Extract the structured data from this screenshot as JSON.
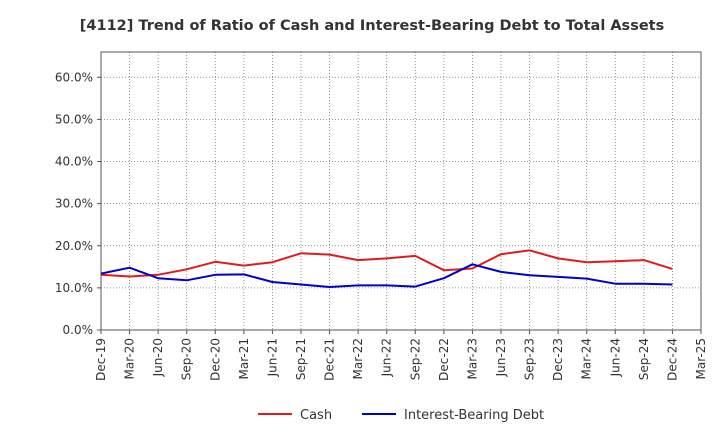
{
  "chart_data": {
    "type": "line",
    "title": "[4112]  Trend of Ratio of Cash and Interest-Bearing Debt to Total Assets",
    "xlabel": "",
    "ylabel": "",
    "ylim": [
      0,
      66
    ],
    "yticks": [
      0,
      10,
      20,
      30,
      40,
      50,
      60
    ],
    "ytick_labels": [
      "0.0%",
      "10.0%",
      "20.0%",
      "30.0%",
      "40.0%",
      "50.0%",
      "60.0%"
    ],
    "xtick_labels": [
      "Dec-19",
      "Mar-20",
      "Jun-20",
      "Sep-20",
      "Dec-20",
      "Mar-21",
      "Jun-21",
      "Sep-21",
      "Dec-21",
      "Mar-22",
      "Jun-22",
      "Sep-22",
      "Dec-22",
      "Mar-23",
      "Jun-23",
      "Sep-23",
      "Dec-23",
      "Mar-24",
      "Jun-24",
      "Sep-24",
      "Dec-24",
      "Mar-25"
    ],
    "grid": true,
    "legend_position": "bottom",
    "series": [
      {
        "name": "Cash",
        "color": "#e31a1c",
        "values": [
          13.1,
          12.7,
          13.1,
          14.4,
          16.2,
          15.3,
          16.1,
          18.2,
          17.9,
          16.6,
          17.0,
          17.6,
          14.2,
          14.6,
          18.0,
          18.9,
          17.0,
          16.1,
          16.3,
          16.6,
          14.5,
          null
        ]
      },
      {
        "name": "Interest-Bearing Debt",
        "color": "#0000cc",
        "values": [
          13.4,
          14.8,
          12.3,
          11.8,
          13.1,
          13.2,
          11.4,
          10.8,
          10.2,
          10.6,
          10.6,
          10.3,
          12.3,
          15.6,
          13.8,
          13.0,
          12.6,
          12.2,
          11.0,
          11.0,
          10.8,
          null
        ]
      }
    ]
  }
}
